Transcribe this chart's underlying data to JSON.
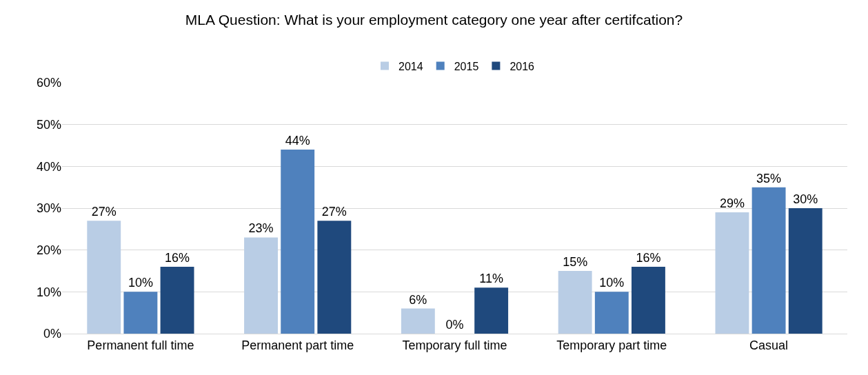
{
  "chart_data": {
    "type": "bar",
    "title": "MLA Question: What is your employment category one year after certifcation?",
    "categories": [
      "Permanent full time",
      "Permanent part time",
      "Temporary full time",
      "Temporary part time",
      "Casual"
    ],
    "series": [
      {
        "name": "2014",
        "color": "#b9cde5",
        "values": [
          27,
          23,
          6,
          15,
          29
        ],
        "value_labels": [
          "27%",
          "23%",
          "6%",
          "15%",
          "29%"
        ]
      },
      {
        "name": "2015",
        "color": "#4f81bd",
        "values": [
          10,
          44,
          0,
          10,
          35
        ],
        "value_labels": [
          "10%",
          "44%",
          "0%",
          "10%",
          "35%"
        ]
      },
      {
        "name": "2016",
        "color": "#1f497d",
        "values": [
          16,
          27,
          11,
          16,
          30
        ],
        "value_labels": [
          "16%",
          "27%",
          "11%",
          "16%",
          "30%"
        ]
      }
    ],
    "ylim": [
      0,
      60
    ],
    "yticks": [
      {
        "value": 0,
        "label": "0%"
      },
      {
        "value": 10,
        "label": "10%"
      },
      {
        "value": 20,
        "label": "20%"
      },
      {
        "value": 30,
        "label": "30%"
      },
      {
        "value": 40,
        "label": "40%"
      },
      {
        "value": 50,
        "label": "50%"
      },
      {
        "value": 60,
        "label": "60%"
      }
    ],
    "grid": "y",
    "legend": "top"
  }
}
